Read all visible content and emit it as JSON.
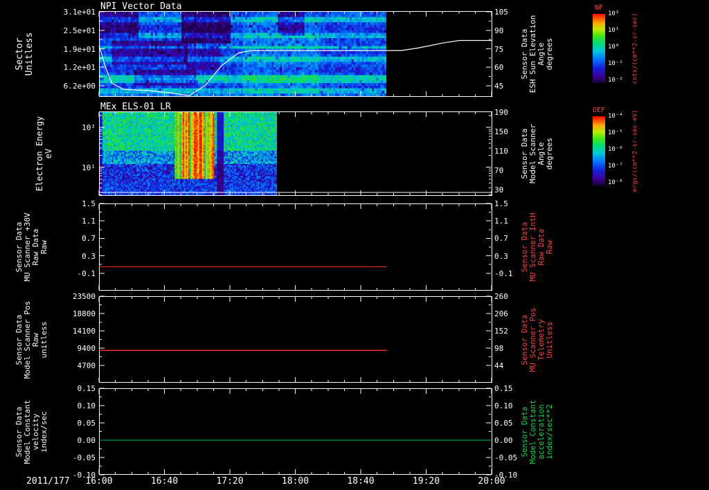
{
  "xaxis": {
    "date_label": "2011/177",
    "tick_labels": [
      "16:00",
      "16:40",
      "17:20",
      "18:00",
      "18:40",
      "19:20",
      "20:00"
    ]
  },
  "colors": {
    "axis": "#ffffff",
    "red_label": "#ff4238",
    "green_label": "#00e04a",
    "red_line": "#ff2a20",
    "green_line": "#00c84a",
    "white_line": "#ffffff"
  },
  "colormap_stops": [
    [
      0,
      [
        20,
        0,
        50
      ]
    ],
    [
      0.1,
      [
        60,
        0,
        150
      ]
    ],
    [
      0.22,
      [
        20,
        30,
        220
      ]
    ],
    [
      0.35,
      [
        0,
        120,
        255
      ]
    ],
    [
      0.47,
      [
        0,
        200,
        220
      ]
    ],
    [
      0.58,
      [
        0,
        220,
        120
      ]
    ],
    [
      0.68,
      [
        60,
        230,
        20
      ]
    ],
    [
      0.78,
      [
        190,
        235,
        0
      ]
    ],
    [
      0.87,
      [
        255,
        170,
        0
      ]
    ],
    [
      1,
      [
        255,
        10,
        0
      ]
    ]
  ],
  "colorbars": [
    {
      "name": "NF",
      "unit": "cnts/(cm**2-sr-sec)",
      "tick_labels": [
        "10²",
        "10¹",
        "10⁰",
        "10⁻¹",
        "10⁻²"
      ]
    },
    {
      "name": "DEF",
      "unit": "ergs/(cm**2-sr-sec-eV)",
      "tick_labels": [
        "10⁻⁴",
        "10⁻⁵",
        "10⁻⁶",
        "10⁻⁷",
        "10⁻⁸"
      ]
    }
  ],
  "chart_data": [
    {
      "type": "heatmap",
      "title": "NPI Vector Data",
      "ylabel_lines": [
        "Sector",
        "Unitless"
      ],
      "left_ticks": {
        "labels": [
          "3.1e+01",
          "2.5e+01",
          "1.9e+01",
          "1.2e+01",
          "6.2e+00"
        ],
        "fracs": [
          0.01,
          0.225,
          0.44,
          0.655,
          0.87
        ]
      },
      "right_ticks": {
        "labels": [
          "105",
          "90",
          "75",
          "60",
          "45"
        ],
        "fracs": [
          0.01,
          0.225,
          0.44,
          0.655,
          0.87
        ]
      },
      "right_label_lines": [
        "Sensor Data",
        "ESH Sun Elevation",
        "Angle",
        "degrees"
      ],
      "right_axis_range": [
        105.5,
        37
      ],
      "x_start": "16:00",
      "x_end": "20:00",
      "data_end_frac": 0.7325,
      "spectrogram": {
        "rows": 32,
        "row_profile": [
          0.3,
          0.32,
          0.46,
          0.44,
          0.3,
          0.26,
          0.25,
          0.27,
          0.42,
          0.44,
          0.3,
          0.28,
          0.3,
          0.46,
          0.28,
          0.26,
          0.3,
          0.45,
          0.44,
          0.3,
          0.28,
          0.26,
          0.25,
          0.28,
          0.5,
          0.52,
          0.48,
          0.3,
          0.28,
          0.45,
          0.44,
          0.34
        ],
        "patches": [
          {
            "t0": 0,
            "t1": 0.13,
            "r0": 0,
            "r1": 9,
            "d": -0.2
          },
          {
            "t0": 0.04,
            "t1": 0.3,
            "r0": 11,
            "r1": 19,
            "d": -0.16
          },
          {
            "t0": 0.28,
            "t1": 0.45,
            "r0": 0,
            "r1": 11,
            "d": -0.24
          },
          {
            "t0": 0.3,
            "t1": 0.42,
            "r0": 13,
            "r1": 21,
            "d": -0.12
          },
          {
            "t0": 0.12,
            "t1": 0.33,
            "r0": 22,
            "r1": 27,
            "d": -0.16
          },
          {
            "t0": 0.5,
            "t1": 0.76,
            "r0": 2,
            "r1": 30,
            "d": 0.07
          },
          {
            "t0": 0.62,
            "t1": 0.71,
            "r0": 0,
            "r1": 8,
            "d": -0.2
          }
        ]
      },
      "overlay_line": {
        "name": "ESH Sun Elevation Angle",
        "color_key": "white_line",
        "points_h_v": [
          [
            0,
            78
          ],
          [
            0.07,
            60
          ],
          [
            0.13,
            48
          ],
          [
            0.25,
            43
          ],
          [
            0.5,
            42
          ],
          [
            0.75,
            40
          ],
          [
            0.92,
            38
          ],
          [
            1.08,
            46
          ],
          [
            1.25,
            62
          ],
          [
            1.42,
            72
          ],
          [
            1.55,
            74
          ],
          [
            3.08,
            74
          ],
          [
            3.25,
            76
          ],
          [
            3.5,
            80
          ],
          [
            3.67,
            82
          ],
          [
            4,
            82
          ]
        ]
      }
    },
    {
      "type": "heatmap",
      "title": "MEx ELS-01 LR",
      "ylabel_lines": [
        "Electron Energy",
        "eV"
      ],
      "left_ticks": {
        "labels": [
          "10²",
          "10¹"
        ],
        "fracs": [
          0.19,
          0.66
        ]
      },
      "right_ticks": {
        "labels": [
          "190",
          "150",
          "110",
          "70",
          "30"
        ],
        "fracs": [
          0.01,
          0.24,
          0.47,
          0.7,
          0.93
        ]
      },
      "right_label_lines": [
        "Sensor Data",
        "Model Scanner",
        "Angle",
        "degrees"
      ],
      "right_axis_range": [
        191.7,
        17.8
      ],
      "x_start": "16:00",
      "x_end": "20:00",
      "data_end_frac": 0.4533,
      "spectrogram": {
        "rows": 56,
        "burst_x": [
          0.42,
          0.64
        ],
        "dark_column_x": [
          0.655,
          0.7
        ]
      },
      "overlay_line": {
        "name": "Model Scanner Angle",
        "color_key": "white_line",
        "constant_value": 25,
        "x_extent": [
          0,
          1
        ]
      }
    },
    {
      "type": "line",
      "title": "",
      "ylabel_lines": [
        "Sensor Data",
        "MU Scanner +30V",
        "Raw Data",
        "Raw"
      ],
      "left_ticks": {
        "labels": [
          "1.5",
          "1.1",
          "0.7",
          "0.3",
          "-0.1"
        ],
        "fracs": [
          0,
          0.2,
          0.4,
          0.6,
          0.8
        ]
      },
      "right_ticks": {
        "labels": [
          "1.5",
          "1.1",
          "0.7",
          "0.3",
          "-0.1"
        ],
        "fracs": [
          0,
          0.2,
          0.4,
          0.6,
          0.8
        ]
      },
      "right_label_lines": [
        "Sensor Data",
        "MU Scanner IntH",
        "Raw Data",
        "Raw"
      ],
      "right_label_color_key": "red_label",
      "axis_range": [
        1.5,
        -0.5
      ],
      "series": [
        {
          "name": "MU Scanner +30V Raw",
          "color_key": "red_line",
          "constant_value": 0.05,
          "x_extent": [
            0,
            0.7325
          ]
        }
      ]
    },
    {
      "type": "line",
      "title": "",
      "ylabel_lines": [
        "Sensor Data",
        "Model Scanner Pos",
        "Raw",
        "unitless"
      ],
      "left_ticks": {
        "labels": [
          "23500",
          "18800",
          "14100",
          "9400",
          "4700"
        ],
        "fracs": [
          0,
          0.2,
          0.4,
          0.6,
          0.8
        ]
      },
      "right_ticks": {
        "labels": [
          "260",
          "206",
          "152",
          "98",
          "44"
        ],
        "fracs": [
          0,
          0.2,
          0.4,
          0.6,
          0.8
        ]
      },
      "right_label_lines": [
        "Sensor Data",
        "MU Scanner Pos",
        "Telemetry",
        "Unitless"
      ],
      "right_label_color_key": "red_label",
      "axis_range": [
        23500,
        0
      ],
      "series": [
        {
          "name": "Model Scanner Pos Raw",
          "color_key": "red_line",
          "constant_value": 8800,
          "x_extent": [
            0,
            0.7325
          ]
        }
      ]
    },
    {
      "type": "line",
      "title": "",
      "ylabel_lines": [
        "Sensor Data",
        "Model Constant",
        "velocity",
        "index/sec"
      ],
      "left_ticks": {
        "labels": [
          "0.15",
          "0.10",
          "0.05",
          "0.00",
          "-0.05",
          "-0.10"
        ],
        "fracs": [
          0,
          0.2,
          0.4,
          0.6,
          0.8,
          1
        ]
      },
      "right_ticks": {
        "labels": [
          "0.15",
          "0.10",
          "0.05",
          "0.00",
          "-0.05",
          "-0.10"
        ],
        "fracs": [
          0,
          0.2,
          0.4,
          0.6,
          0.8,
          1
        ]
      },
      "right_label_lines": [
        "Sensor Data",
        "Model Constant",
        "acceleration",
        "index/sec**2"
      ],
      "right_label_color_key": "green_label",
      "axis_range": [
        0.15,
        -0.1
      ],
      "series": [
        {
          "name": "Model Constant velocity",
          "color_key": "green_line",
          "constant_value": 0.0,
          "x_extent": [
            0,
            1
          ]
        }
      ]
    }
  ]
}
